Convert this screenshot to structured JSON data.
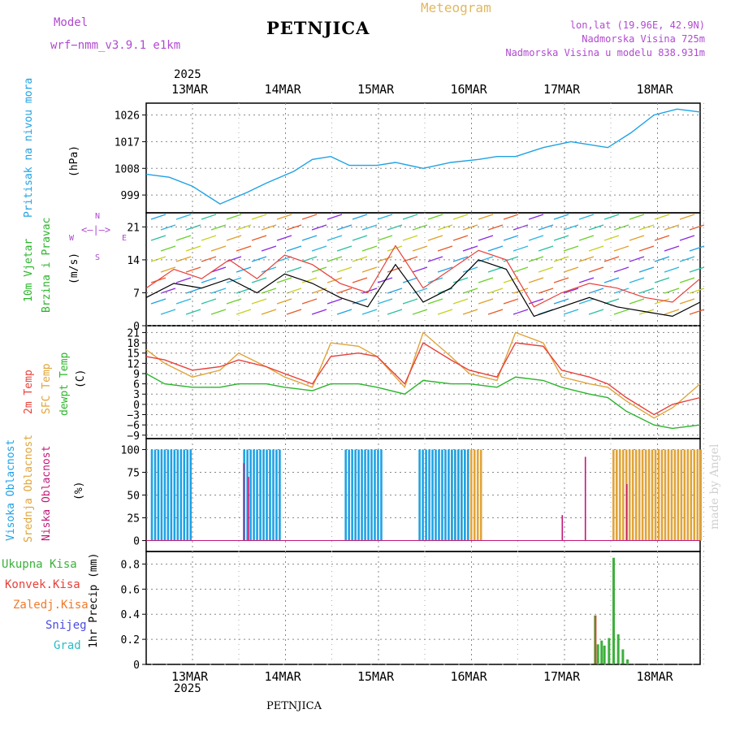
{
  "header": {
    "model_label": "Model",
    "model_name": "wrf−nmm_v3.9.1  e1km",
    "station": "PETNJICA",
    "meteogram": "Meteogram",
    "coords": "lon,lat (19.96E, 42.9N)",
    "elev": "Nadmorska Visina 725m",
    "elev_model": "Nadmorska Visina u modelu 838.931m",
    "year_top": "2025",
    "year_bottom": "2025",
    "footer_station": "PETNJICA",
    "watermark": "made by Angel"
  },
  "colors": {
    "pressure": "#1fa2e4",
    "temp2m": "#e8403a",
    "sfc": "#e0a43a",
    "dew": "#2ab52a",
    "high_cloud": "#1fa2e4",
    "mid_cloud": "#e0a43a",
    "low_cloud": "#c2187a",
    "total_precip": "#3cb03c",
    "conv_precip": "#e8403a",
    "frz": "#f07a2a",
    "snow": "#4a4ae0",
    "grad": "#2abcc4",
    "wind_title": "#2ab52a",
    "compass": "#b04ad0"
  },
  "days": [
    "13MAR",
    "14MAR",
    "15MAR",
    "16MAR",
    "17MAR",
    "18MAR"
  ],
  "panels": {
    "pressure": {
      "title": "Pritisak na nivou mora",
      "unit": "(hPa)",
      "ticks": [
        "1026",
        "1017",
        "1008",
        "999"
      ]
    },
    "wind": {
      "title1": "10m Vjetar",
      "title2": "Brzina i Pravac",
      "unit": "(m/s)",
      "ticks": [
        "21",
        "14",
        "7",
        "0"
      ],
      "compass": {
        "n": "N",
        "s": "S",
        "w": "W",
        "e": "E"
      }
    },
    "temp": {
      "title_2m": "2m Temp",
      "title_sfc": "SFC Temp",
      "title_dew": "dewpt Temp",
      "unit": "(C)",
      "ticks": [
        "21",
        "18",
        "15",
        "12",
        "9",
        "6",
        "3",
        "0",
        "−3",
        "−6",
        "−9"
      ]
    },
    "cloud": {
      "title_high": "Visoka Oblacnost",
      "title_mid": "Srednja Oblacnost",
      "title_low": "Niska Oblacnost",
      "unit": "(%)",
      "ticks": [
        "100",
        "75",
        "50",
        "25",
        "0"
      ]
    },
    "precip": {
      "title": "1hr Precip (mm)",
      "ticks": [
        "0.8",
        "0.6",
        "0.4",
        "0.2",
        "0"
      ],
      "legend": [
        "Ukupna Kisa",
        "Konvek.Kisa",
        "Zaledj.Kisa",
        "Snijeg",
        "Grad"
      ]
    }
  },
  "chart_data": [
    {
      "type": "line",
      "title": "Pritisak na nivou mora",
      "ylabel": "(hPa)",
      "ylim": [
        993,
        1030
      ],
      "x_days": [
        0.0,
        0.25,
        0.5,
        0.8,
        1.1,
        1.3,
        1.6,
        1.8,
        2.0,
        2.2,
        2.5,
        2.7,
        3.0,
        3.3,
        3.6,
        3.8,
        4.0,
        4.3,
        4.6,
        4.8,
        5.0,
        5.25,
        5.5,
        5.75,
        6.0
      ],
      "series": [
        {
          "name": "pressure",
          "values": [
            1006,
            1005,
            1002,
            996,
            1000,
            1003,
            1007,
            1011,
            1012,
            1009,
            1009,
            1010,
            1008,
            1010,
            1011,
            1012,
            1012,
            1015,
            1017,
            1016,
            1015,
            1020,
            1026,
            1028,
            1027
          ]
        }
      ]
    },
    {
      "type": "line",
      "title": "10m Vjetar",
      "ylabel": "(m/s)",
      "ylim": [
        0,
        24
      ],
      "x_days": [
        0,
        0.3,
        0.6,
        0.9,
        1.2,
        1.5,
        1.8,
        2.1,
        2.4,
        2.7,
        3.0,
        3.3,
        3.6,
        3.9,
        4.2,
        4.5,
        4.8,
        5.1,
        5.4,
        5.7,
        6.0
      ],
      "series": [
        {
          "name": "wind speed",
          "values": [
            6,
            9,
            8,
            10,
            7,
            11,
            9,
            6,
            4,
            13,
            5,
            8,
            14,
            12,
            2,
            4,
            6,
            4,
            3,
            2,
            5
          ]
        },
        {
          "name": "gust",
          "values": [
            8,
            12,
            10,
            14,
            10,
            15,
            13,
            9,
            7,
            17,
            8,
            12,
            16,
            14,
            4,
            7,
            9,
            8,
            6,
            5,
            10
          ]
        }
      ]
    },
    {
      "type": "line",
      "title": "Temp",
      "ylabel": "(C)",
      "ylim": [
        -10,
        23
      ],
      "x_days": [
        0,
        0.2,
        0.5,
        0.8,
        1.0,
        1.3,
        1.5,
        1.8,
        2.0,
        2.3,
        2.5,
        2.8,
        3.0,
        3.3,
        3.5,
        3.8,
        4.0,
        4.3,
        4.5,
        4.8,
        5.0,
        5.2,
        5.5,
        5.7,
        6.0
      ],
      "series": [
        {
          "name": "2m Temp",
          "values": [
            14,
            13,
            10,
            11,
            13,
            11,
            9,
            6,
            14,
            15,
            14,
            6,
            18,
            13,
            10,
            8,
            18,
            17,
            10,
            8,
            6,
            2,
            -3,
            0,
            2
          ]
        },
        {
          "name": "SFC Temp",
          "values": [
            16,
            12,
            8,
            10,
            15,
            11,
            8,
            5,
            18,
            17,
            14,
            5,
            21,
            14,
            9,
            7,
            21,
            18,
            8,
            6,
            5,
            1,
            -4,
            -1,
            6
          ]
        },
        {
          "name": "dewpt Temp",
          "values": [
            9,
            6,
            5,
            5,
            6,
            6,
            5,
            4,
            6,
            6,
            5,
            3,
            7,
            6,
            6,
            5,
            8,
            7,
            5,
            3,
            2,
            -2,
            -6,
            -7,
            -6
          ]
        }
      ]
    },
    {
      "type": "bar",
      "title": "Oblacnost",
      "ylabel": "(%)",
      "ylim": [
        0,
        100
      ],
      "series": [
        {
          "name": "Visoka Oblacnost",
          "segments": [
            [
              0.05,
              0.5,
              100
            ],
            [
              1.05,
              1.45,
              100
            ],
            [
              2.15,
              2.55,
              100
            ],
            [
              2.95,
              3.5,
              100
            ]
          ]
        },
        {
          "name": "Srednja Oblacnost",
          "segments": [
            [
              3.3,
              3.65,
              100
            ],
            [
              5.05,
              6.0,
              100
            ]
          ]
        },
        {
          "name": "Niska Oblacnost",
          "spikes": [
            [
              1.05,
              85
            ],
            [
              1.1,
              70
            ],
            [
              4.5,
              28
            ],
            [
              4.75,
              92
            ],
            [
              5.2,
              62
            ]
          ]
        }
      ]
    },
    {
      "type": "bar",
      "title": "1hr Precip (mm)",
      "ylim": [
        0,
        0.9
      ],
      "x_days": [
        4.85,
        4.88,
        4.92,
        4.95,
        5.0,
        5.05,
        5.1,
        5.15,
        5.2
      ],
      "series": [
        {
          "name": "Ukupna Kisa",
          "values": [
            0.39,
            0.16,
            0.19,
            0.15,
            0.21,
            0.85,
            0.24,
            0.12,
            0.04
          ]
        },
        {
          "name": "Konvek.Kisa",
          "values": [
            0.39,
            0.0,
            0.0,
            0.0,
            0.0,
            0.0,
            0.0,
            0.0,
            0.0
          ]
        }
      ]
    }
  ]
}
